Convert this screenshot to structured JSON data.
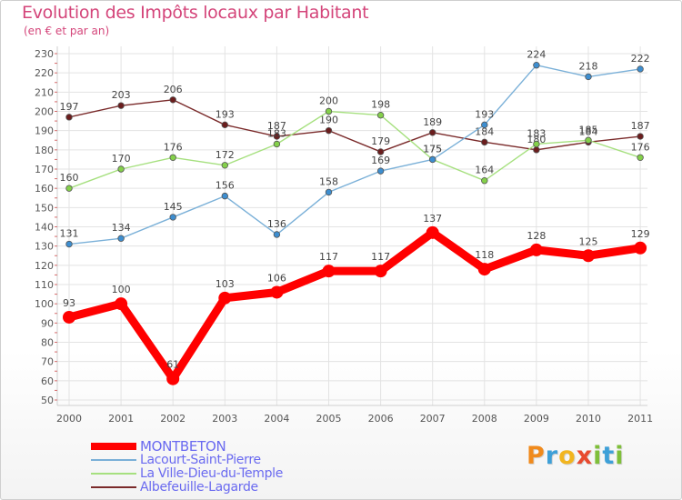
{
  "header": {
    "title": "Evolution des Impôts locaux par Habitant",
    "subtitle": "(en € et par an)"
  },
  "logo": {
    "letters": [
      "P",
      "r",
      "o",
      "x",
      "i",
      "t",
      "i"
    ],
    "colors": [
      "#f08a1c",
      "#3ea0d8",
      "#f2b51f",
      "#e84a2f",
      "#7fbf3a",
      "#3ea0d8",
      "#7fbf3a"
    ]
  },
  "chart_data": {
    "type": "line",
    "title": "Evolution des Impôts locaux par Habitant",
    "subtitle": "(en € et par an)",
    "xlabel": "",
    "ylabel": "",
    "x": [
      "2000",
      "2001",
      "2002",
      "2003",
      "2004",
      "2005",
      "2006",
      "2007",
      "2008",
      "2009",
      "2010",
      "2011"
    ],
    "ylim": [
      50,
      230
    ],
    "yticks": [
      "50",
      "60",
      "70",
      "80",
      "90",
      "100",
      "110",
      "120",
      "130",
      "140",
      "150",
      "160",
      "170",
      "180",
      "190",
      "200",
      "210",
      "220",
      "230"
    ],
    "grid": true,
    "legend_position": "bottom-left",
    "series": [
      {
        "name": "Albefeuille-Lagarde",
        "color": "#7a2a2a",
        "marker_color": "#6b1d1d",
        "values": [
          197,
          203,
          206,
          193,
          187,
          190,
          179,
          189,
          184,
          180,
          184,
          187
        ],
        "labels": [
          "197",
          "203",
          "206",
          "193",
          "187",
          "190",
          "179",
          "189",
          "184",
          "180",
          "184",
          "187"
        ]
      },
      {
        "name": "La Ville-Dieu-du-Temple",
        "color": "#a6e07f",
        "marker_color": "#84d04a",
        "values": [
          160,
          170,
          176,
          172,
          183,
          200,
          198,
          175,
          164,
          183,
          185,
          176
        ],
        "labels": [
          "160",
          "170",
          "176",
          "172",
          "183",
          "200",
          "198",
          "175",
          "164",
          "183",
          "185",
          "176"
        ]
      },
      {
        "name": "Lacourt-Saint-Pierre",
        "color": "#7ab0d8",
        "marker_color": "#3d8ed0",
        "values": [
          131,
          134,
          145,
          156,
          136,
          158,
          169,
          175,
          193,
          224,
          218,
          222
        ],
        "labels": [
          "131",
          "134",
          "145",
          "156",
          "136",
          "158",
          "169",
          "175",
          "193",
          "224",
          "218",
          "222"
        ]
      },
      {
        "name": "MONTBETON",
        "color": "#ff0000",
        "marker_color": "#ff0000",
        "values": [
          93,
          100,
          61,
          103,
          106,
          117,
          117,
          137,
          118,
          128,
          125,
          129
        ],
        "labels": [
          "93",
          "100",
          "61",
          "103",
          "106",
          "117",
          "117",
          "137",
          "118",
          "128",
          "125",
          "129"
        ]
      }
    ],
    "legend": [
      {
        "name": "MONTBETON",
        "color": "#ff0000",
        "text_color": "#6a6af0"
      },
      {
        "name": "Lacourt-Saint-Pierre",
        "color": "#7ab0d8",
        "text_color": "#6a6af0"
      },
      {
        "name": "La Ville-Dieu-du-Temple",
        "color": "#a6e07f",
        "text_color": "#6a6af0"
      },
      {
        "name": "Albefeuille-Lagarde",
        "color": "#7a2a2a",
        "text_color": "#6a6af0"
      }
    ]
  }
}
